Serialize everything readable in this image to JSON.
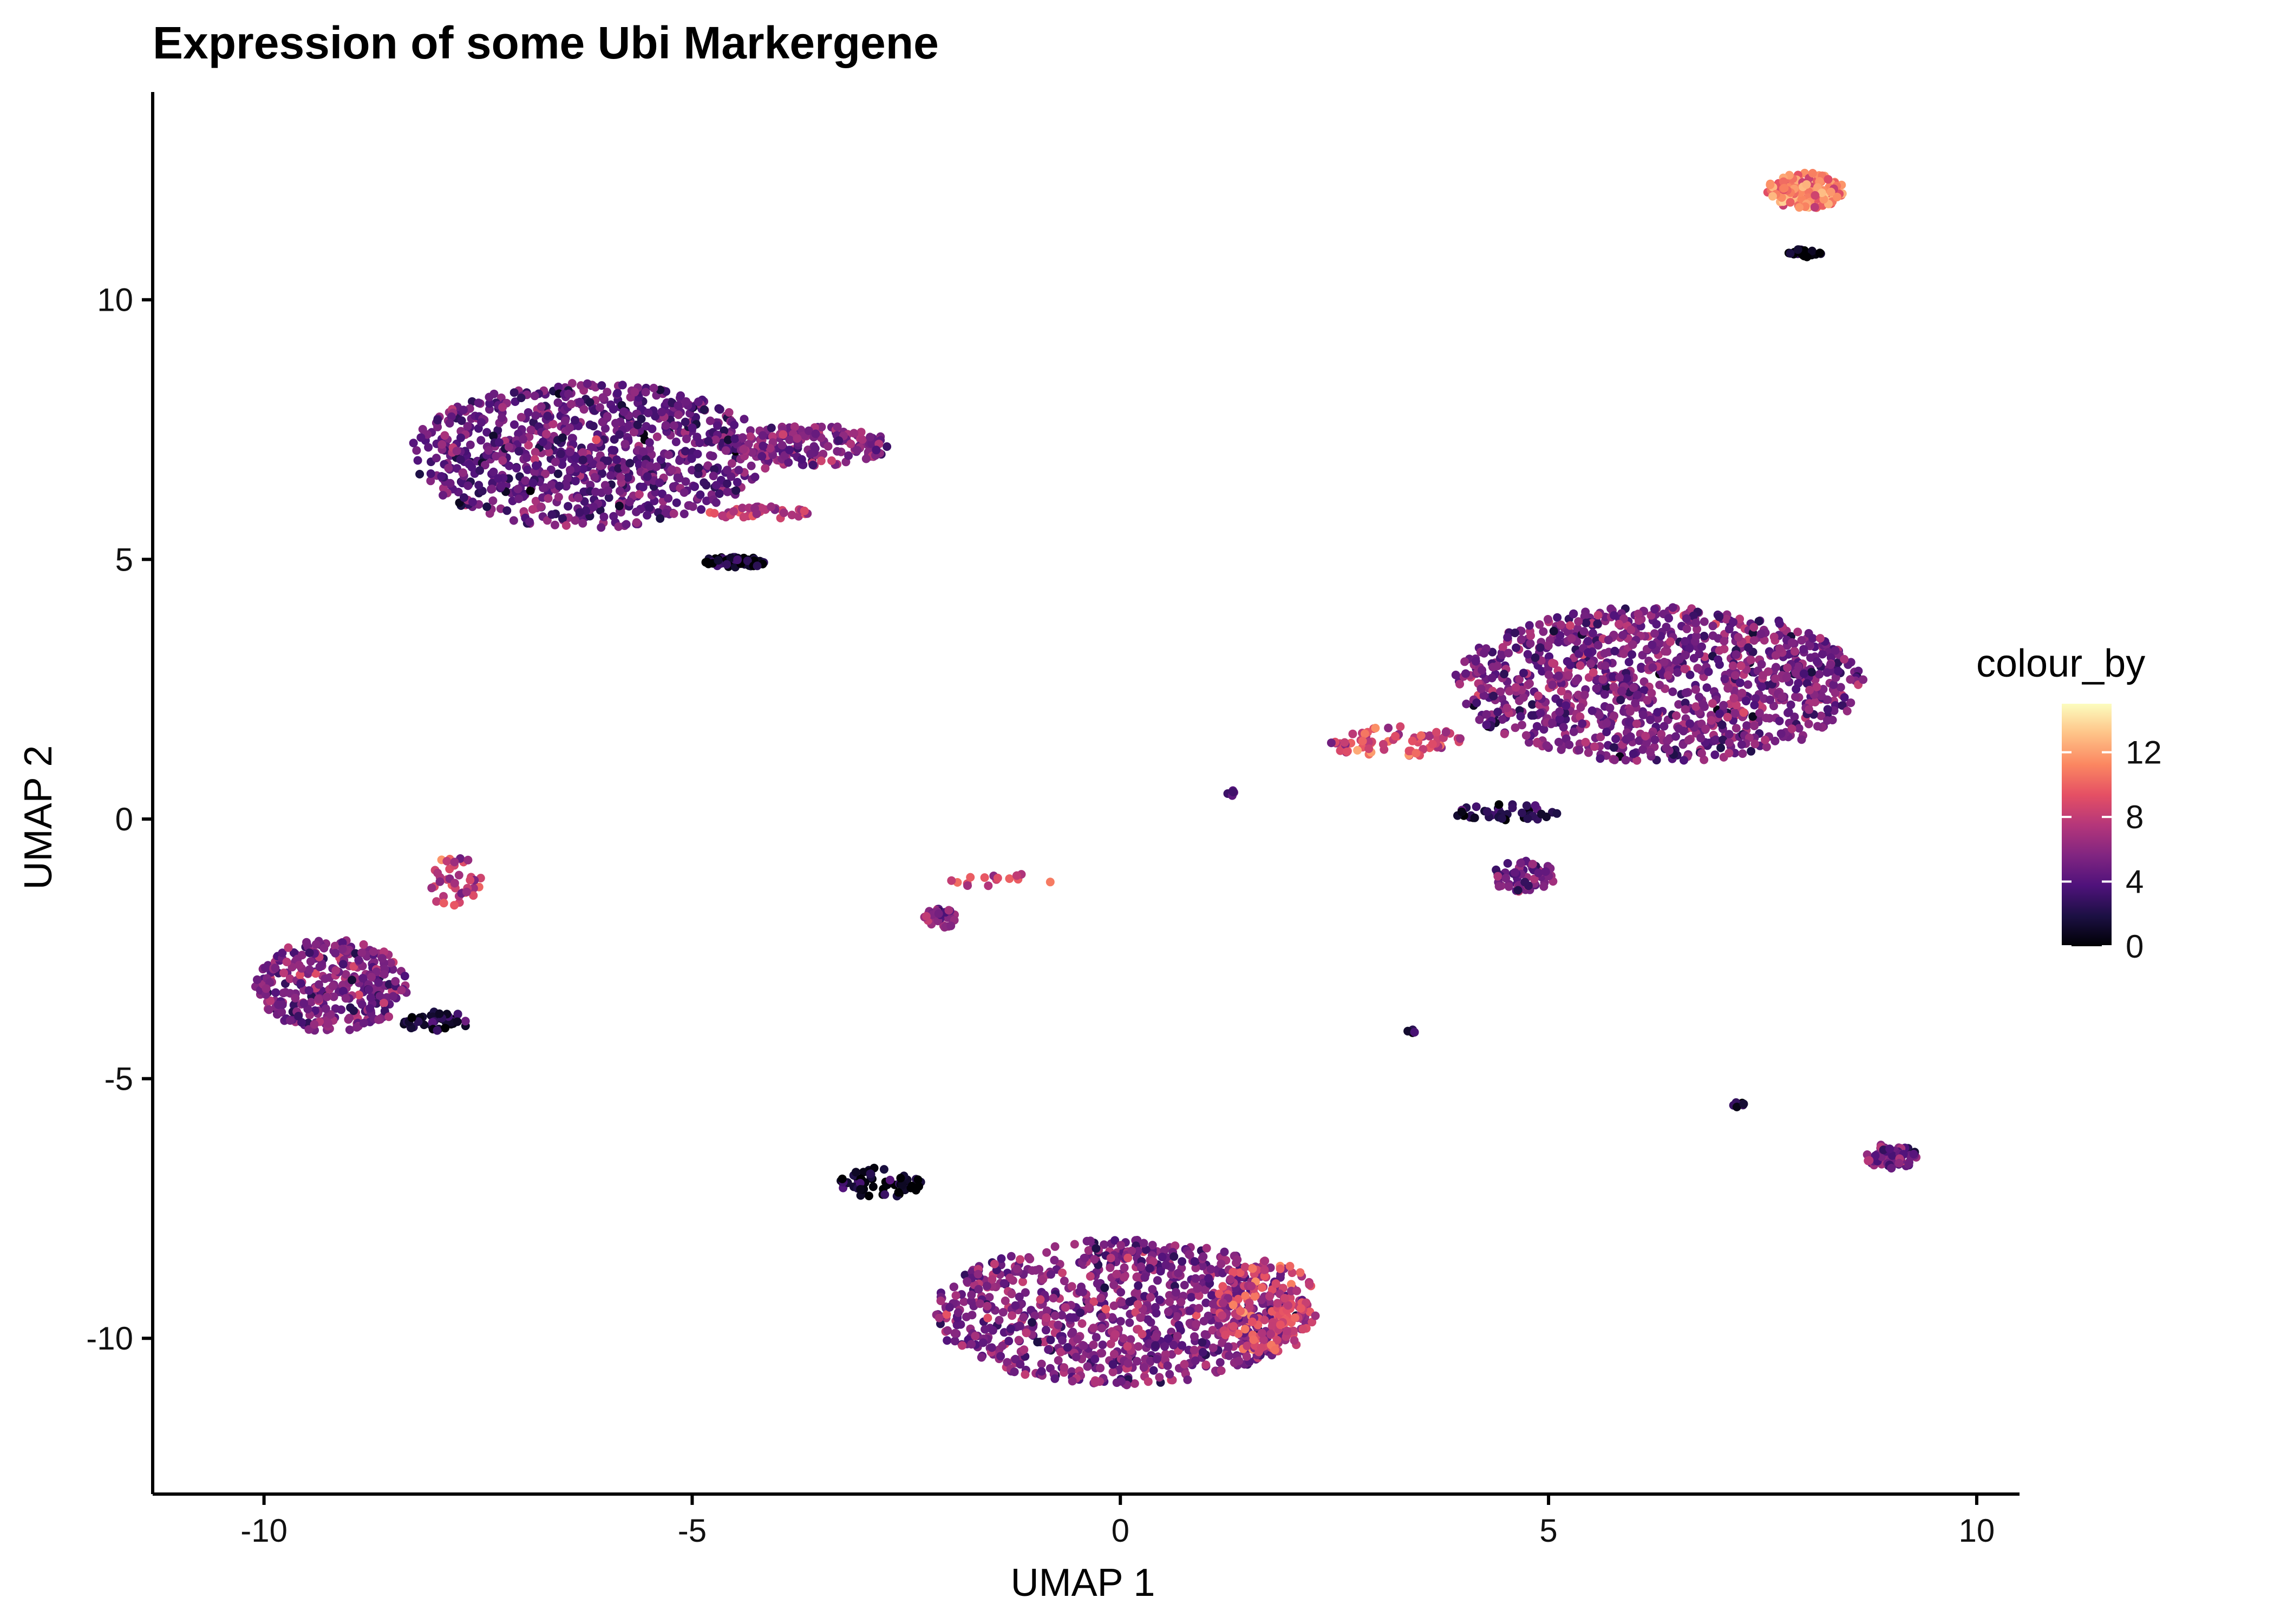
{
  "chart_data": {
    "type": "scatter",
    "title": "Expression of some Ubi Markergene",
    "xlabel": "UMAP 1",
    "ylabel": "UMAP 2",
    "xlim": [
      -11.3,
      10.5
    ],
    "ylim": [
      -13,
      14
    ],
    "x_ticks": [
      -10,
      -5,
      0,
      5,
      10
    ],
    "y_ticks": [
      -10,
      -5,
      0,
      5,
      10
    ],
    "x_tick_labels": [
      "-10",
      "-5",
      "0",
      "5",
      "10"
    ],
    "y_tick_labels": [
      "-10",
      "-5",
      "0",
      "5",
      "10"
    ],
    "grid": false,
    "color_scale": {
      "name": "colour_by",
      "palette": "magma",
      "range": [
        0,
        15
      ],
      "ticks": [
        0,
        4,
        8,
        12
      ],
      "tick_labels": [
        "0",
        "4",
        "8",
        "12"
      ],
      "colors": [
        "#000004",
        "#1c1044",
        "#4f127b",
        "#812581",
        "#b5367a",
        "#e55064",
        "#fb8761",
        "#fec287",
        "#fcfdbf"
      ],
      "legend_position": "right"
    },
    "clusters": [
      {
        "center": [
          -6.2,
          7.0
        ],
        "spread": [
          2.1,
          1.4
        ],
        "expression": 4.5,
        "points": 900
      },
      {
        "center": [
          -3.6,
          7.2
        ],
        "spread": [
          0.9,
          0.4
        ],
        "expression": 5.5,
        "points": 160
      },
      {
        "center": [
          -4.5,
          4.95
        ],
        "spread": [
          0.4,
          0.1
        ],
        "expression": 1,
        "points": 60
      },
      {
        "center": [
          -4.2,
          5.9
        ],
        "spread": [
          0.6,
          0.12
        ],
        "expression": 8,
        "points": 40
      },
      {
        "center": [
          -9.2,
          -3.2
        ],
        "spread": [
          0.9,
          0.9
        ],
        "expression": 5.5,
        "points": 320
      },
      {
        "center": [
          -7.8,
          -1.2
        ],
        "spread": [
          0.35,
          0.5
        ],
        "expression": 8,
        "points": 40
      },
      {
        "center": [
          -8.0,
          -3.9
        ],
        "spread": [
          0.4,
          0.2
        ],
        "expression": 1.5,
        "points": 40
      },
      {
        "center": [
          -2.1,
          -1.9
        ],
        "spread": [
          0.2,
          0.2
        ],
        "expression": 6,
        "points": 40
      },
      {
        "center": [
          -1.4,
          -1.2
        ],
        "spread": [
          0.6,
          0.15
        ],
        "expression": 9,
        "points": 15
      },
      {
        "center": [
          0.0,
          -9.5
        ],
        "spread": [
          2.2,
          1.4
        ],
        "expression": 5.5,
        "points": 900
      },
      {
        "center": [
          1.7,
          -9.4
        ],
        "spread": [
          0.6,
          0.9
        ],
        "expression": 8.5,
        "points": 180
      },
      {
        "center": [
          -2.8,
          -7.0
        ],
        "spread": [
          0.5,
          0.3
        ],
        "expression": 1,
        "points": 60
      },
      {
        "center": [
          6.3,
          2.6
        ],
        "spread": [
          2.4,
          1.5
        ],
        "expression": 5.2,
        "points": 1100
      },
      {
        "center": [
          3.2,
          1.5
        ],
        "spread": [
          0.8,
          0.3
        ],
        "expression": 8.5,
        "points": 70
      },
      {
        "center": [
          4.5,
          0.1
        ],
        "spread": [
          0.6,
          0.2
        ],
        "expression": 1.5,
        "points": 40
      },
      {
        "center": [
          4.7,
          -1.1
        ],
        "spread": [
          0.4,
          0.3
        ],
        "expression": 5,
        "points": 60
      },
      {
        "center": [
          8.0,
          12.1
        ],
        "spread": [
          0.45,
          0.35
        ],
        "expression": 11,
        "points": 140
      },
      {
        "center": [
          8.0,
          10.9
        ],
        "spread": [
          0.2,
          0.08
        ],
        "expression": 0.5,
        "points": 25
      },
      {
        "center": [
          9.0,
          -6.5
        ],
        "spread": [
          0.3,
          0.25
        ],
        "expression": 5,
        "points": 70
      },
      {
        "center": [
          7.2,
          -5.5
        ],
        "spread": [
          0.1,
          0.05
        ],
        "expression": 2,
        "points": 8
      },
      {
        "center": [
          3.4,
          -4.1
        ],
        "spread": [
          0.05,
          0.05
        ],
        "expression": 2,
        "points": 5
      },
      {
        "center": [
          1.3,
          0.5
        ],
        "spread": [
          0.05,
          0.05
        ],
        "expression": 3,
        "points": 5
      }
    ]
  }
}
